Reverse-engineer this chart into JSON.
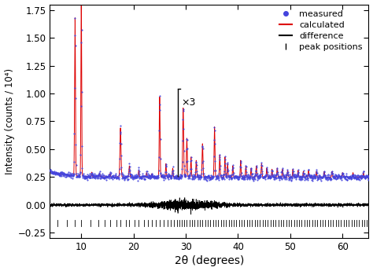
{
  "xlim": [
    4,
    65
  ],
  "ylim": [
    -0.3,
    1.8
  ],
  "yticks": [
    -0.25,
    0.0,
    0.25,
    0.5,
    0.75,
    1.0,
    1.25,
    1.5,
    1.75
  ],
  "xticks": [
    10,
    20,
    30,
    40,
    50,
    60
  ],
  "xlabel": "2θ (degrees)",
  "ylabel": "Intensity (counts / 10⁴)",
  "measured_color": "#4444dd",
  "calculated_color": "#dd0000",
  "difference_color": "#000000",
  "scale_line_x": 28.5,
  "scale_label": "×3",
  "legend_labels": [
    "measured",
    "calculated",
    "difference",
    "peak positions"
  ],
  "background_color": "#ffffff",
  "figsize": [
    4.74,
    3.45
  ],
  "dpi": 100
}
